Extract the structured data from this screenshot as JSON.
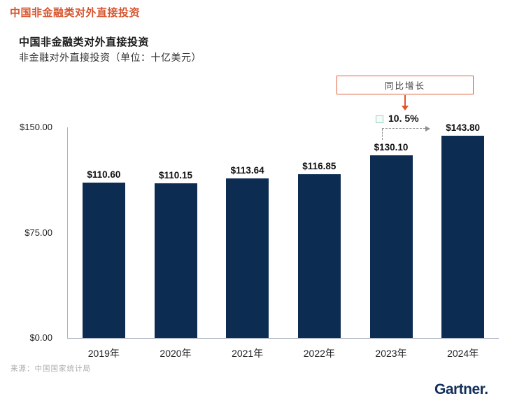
{
  "page": {
    "header_title": "中国非金融类对外直接投资",
    "source": "来源：中国国家统计局",
    "brand_logo": "Gartner."
  },
  "chart": {
    "title": "中国非金融类对外直接投资",
    "subtitle": "非金融对外直接投资（单位：十亿美元）"
  },
  "annotation": {
    "callout_label": "同比增长",
    "growth_value": "10. 5%"
  },
  "chart_data": {
    "type": "bar",
    "title": "中国非金融类对外直接投资",
    "subtitle": "非金融对外直接投资（单位：十亿美元）",
    "categories": [
      "2019年",
      "2020年",
      "2021年",
      "2022年",
      "2023年",
      "2024年"
    ],
    "values": [
      110.6,
      110.15,
      113.64,
      116.85,
      130.1,
      143.8
    ],
    "bar_labels": [
      "$110.60",
      "$110.15",
      "$113.64",
      "$116.85",
      "$130.10",
      "$143.80"
    ],
    "ylim": [
      0,
      150
    ],
    "yticks": [
      {
        "value": 0,
        "label": "$0.00"
      },
      {
        "value": 75,
        "label": "$75.00"
      },
      {
        "value": 150,
        "label": "$150.00"
      }
    ],
    "grid": false,
    "legend_position": "none",
    "bar_color": "#0D2C52",
    "annotation": {
      "label": "同比增长",
      "value": "10. 5%",
      "from_category": "2023年",
      "to_category": "2024年"
    },
    "source": "来源：中国国家统计局"
  },
  "colors": {
    "accent_orange": "#D9542B",
    "callout_border": "#E2603C",
    "bar_navy": "#0D2C52",
    "brand_navy": "#13305A",
    "teal_marker": "#93D2C3"
  }
}
